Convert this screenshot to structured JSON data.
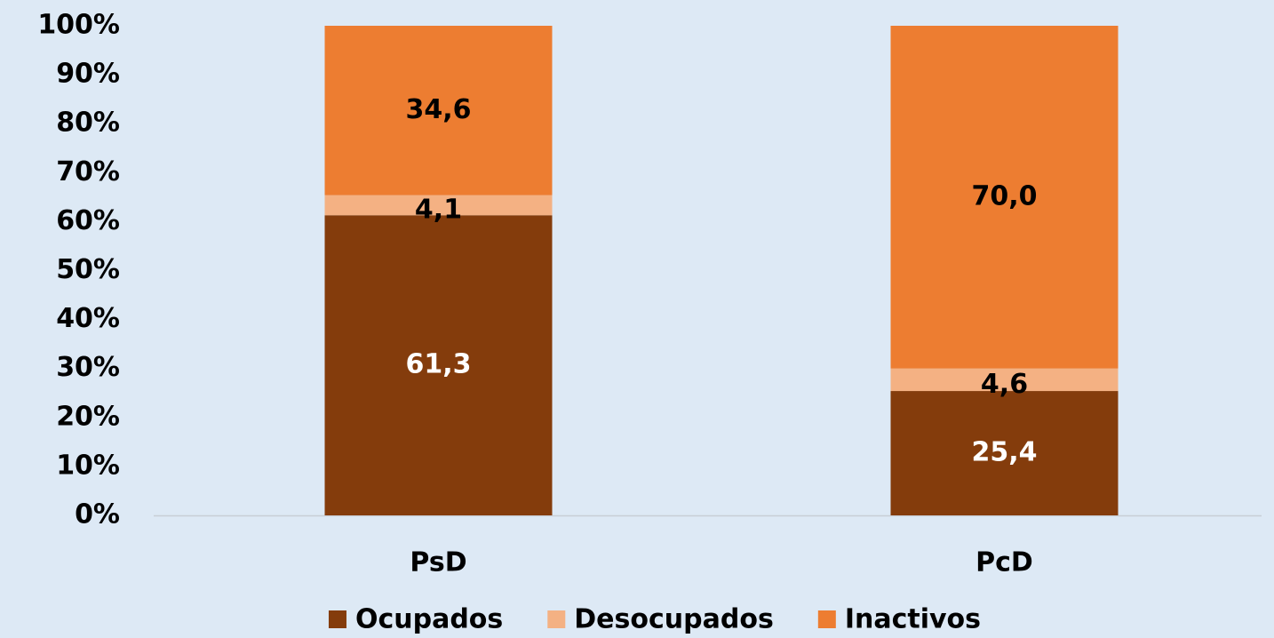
{
  "chart_data": {
    "type": "stacked_bar",
    "categories": [
      "PsD",
      "PcD"
    ],
    "series": [
      {
        "name": "Ocupados",
        "color": "#843c0c",
        "label_color": "#ffffff",
        "values": [
          61.3,
          25.4
        ],
        "value_labels": [
          "61,3",
          "25,4"
        ]
      },
      {
        "name": "Desocupados",
        "color": "#f4b183",
        "label_color": "#000000",
        "values": [
          4.1,
          4.6
        ],
        "value_labels": [
          "4,1",
          "4,6"
        ]
      },
      {
        "name": "Inactivos",
        "color": "#ed7d31",
        "label_color": "#000000",
        "values": [
          34.6,
          70.0
        ],
        "value_labels": [
          "34,6",
          "70,0"
        ]
      }
    ],
    "ylim": [
      0,
      100
    ],
    "yticks": [
      {
        "value": 0,
        "label": "0%"
      },
      {
        "value": 10,
        "label": "10%"
      },
      {
        "value": 20,
        "label": "20%"
      },
      {
        "value": 30,
        "label": "30%"
      },
      {
        "value": 40,
        "label": "40%"
      },
      {
        "value": 50,
        "label": "50%"
      },
      {
        "value": 60,
        "label": "60%"
      },
      {
        "value": 70,
        "label": "70%"
      },
      {
        "value": 80,
        "label": "80%"
      },
      {
        "value": 90,
        "label": "90%"
      },
      {
        "value": 100,
        "label": "100%"
      }
    ],
    "legend": "bottom"
  }
}
